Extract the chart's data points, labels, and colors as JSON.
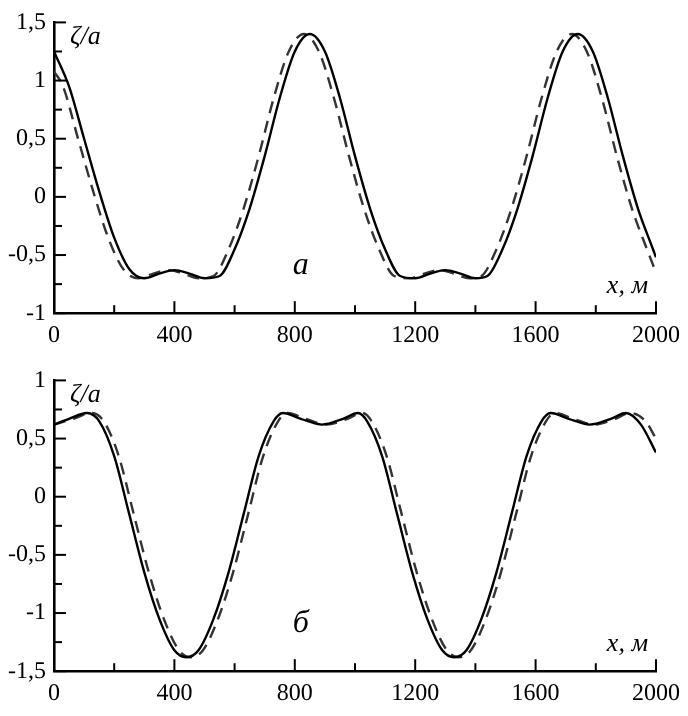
{
  "chart_data": [
    {
      "type": "line",
      "ylabel": "ζ/a",
      "xlabel": "x, м",
      "annotations": [
        "а"
      ],
      "marker": "none",
      "grid": false,
      "legend": false,
      "xlim": [
        0,
        2000
      ],
      "xticks": [
        0,
        {
          "value": 200,
          "label": null
        },
        400,
        {
          "value": 600,
          "label": null
        },
        800,
        {
          "value": 1000,
          "label": null
        },
        1200,
        {
          "value": 1400,
          "label": null
        },
        1600,
        {
          "value": 1800,
          "label": null
        },
        2000
      ],
      "ylim": [
        -1,
        1.5
      ],
      "yticks": [
        -1,
        {
          "value": -0.75,
          "label": null
        },
        {
          "value": -0.5,
          "label": "-0,5"
        },
        {
          "value": -0.25,
          "label": null
        },
        0,
        {
          "value": 0.25,
          "label": null
        },
        {
          "value": 0.5,
          "label": "0,5"
        },
        {
          "value": 0.75,
          "label": null
        },
        1,
        {
          "value": 1.25,
          "label": null
        },
        {
          "value": 1.5,
          "label": "1,5"
        }
      ],
      "series": [
        {
          "color": "#000000",
          "line_style": "solid",
          "x": [
            0,
            50,
            100,
            150,
            200,
            250,
            300,
            350,
            400,
            450,
            500,
            550,
            600,
            650,
            700,
            750,
            800,
            850,
            900,
            950,
            1000,
            1050,
            1100,
            1150,
            1200,
            1250,
            1300,
            1350,
            1400,
            1440,
            1490,
            1540,
            1590,
            1640,
            1690,
            1740,
            1790,
            1840,
            1890,
            1940,
            1990,
            2000
          ],
          "values": [
            1.25,
            0.95,
            0.5,
            0.05,
            -0.35,
            -0.62,
            -0.7,
            -0.66,
            -0.63,
            -0.66,
            -0.7,
            -0.68,
            -0.45,
            -0.1,
            0.35,
            0.85,
            1.25,
            1.4,
            1.25,
            0.85,
            0.35,
            -0.1,
            -0.45,
            -0.68,
            -0.7,
            -0.66,
            -0.63,
            -0.66,
            -0.7,
            -0.68,
            -0.45,
            -0.1,
            0.35,
            0.85,
            1.25,
            1.4,
            1.25,
            0.85,
            0.35,
            -0.1,
            -0.45,
            -0.52
          ]
        },
        {
          "color": "#333333",
          "line_style": "dashed",
          "x": [
            0,
            30,
            80,
            130,
            180,
            230,
            280,
            330,
            380,
            430,
            480,
            530,
            580,
            630,
            680,
            730,
            780,
            830,
            880,
            930,
            980,
            1030,
            1080,
            1130,
            1180,
            1230,
            1280,
            1330,
            1380,
            1420,
            1470,
            1520,
            1570,
            1620,
            1670,
            1720,
            1770,
            1820,
            1870,
            1920,
            1970,
            2000
          ],
          "values": [
            1.08,
            0.95,
            0.5,
            0.05,
            -0.35,
            -0.62,
            -0.7,
            -0.66,
            -0.63,
            -0.66,
            -0.7,
            -0.68,
            -0.45,
            -0.1,
            0.35,
            0.85,
            1.25,
            1.4,
            1.25,
            0.85,
            0.35,
            -0.1,
            -0.45,
            -0.68,
            -0.7,
            -0.66,
            -0.63,
            -0.66,
            -0.7,
            -0.68,
            -0.45,
            -0.1,
            0.35,
            0.85,
            1.25,
            1.4,
            1.25,
            0.85,
            0.35,
            -0.1,
            -0.45,
            -0.65
          ]
        }
      ]
    },
    {
      "type": "line",
      "ylabel": "ζ/a",
      "xlabel": "x, м",
      "annotations": [
        "б"
      ],
      "marker": "none",
      "grid": false,
      "legend": false,
      "xlim": [
        0,
        2000
      ],
      "xticks": [
        0,
        {
          "value": 200,
          "label": null
        },
        400,
        {
          "value": 600,
          "label": null
        },
        800,
        {
          "value": 1000,
          "label": null
        },
        1200,
        {
          "value": 1400,
          "label": null
        },
        1600,
        {
          "value": 1800,
          "label": null
        },
        2000
      ],
      "ylim": [
        -1.5,
        1
      ],
      "yticks": [
        {
          "value": -1.5,
          "label": "-1,5"
        },
        {
          "value": -1.25,
          "label": null
        },
        -1,
        {
          "value": -0.75,
          "label": null
        },
        {
          "value": -0.5,
          "label": "-0,5"
        },
        {
          "value": -0.25,
          "label": null
        },
        0,
        {
          "value": 0.25,
          "label": null
        },
        {
          "value": 0.5,
          "label": "0,5"
        },
        {
          "value": 0.75,
          "label": null
        },
        1
      ],
      "series": [
        {
          "color": "#000000",
          "line_style": "solid",
          "x": [
            0,
            50,
            110,
            150,
            200,
            250,
            300,
            350,
            400,
            440,
            480,
            530,
            580,
            630,
            680,
            730,
            760,
            820,
            890,
            960,
            1010,
            1040,
            1090,
            1140,
            1190,
            1240,
            1290,
            1330,
            1370,
            1420,
            1470,
            1520,
            1570,
            1620,
            1650,
            1710,
            1780,
            1850,
            1900,
            1950,
            2000
          ],
          "values": [
            0.62,
            0.67,
            0.72,
            0.65,
            0.35,
            -0.15,
            -0.65,
            -1.05,
            -1.32,
            -1.38,
            -1.32,
            -1.05,
            -0.65,
            -0.15,
            0.35,
            0.65,
            0.72,
            0.67,
            0.62,
            0.67,
            0.72,
            0.65,
            0.35,
            -0.15,
            -0.65,
            -1.05,
            -1.32,
            -1.38,
            -1.32,
            -1.05,
            -0.65,
            -0.15,
            0.35,
            0.65,
            0.72,
            0.67,
            0.62,
            0.67,
            0.72,
            0.62,
            0.38
          ]
        },
        {
          "color": "#333333",
          "line_style": "dashed",
          "x": [
            0,
            65,
            125,
            165,
            215,
            265,
            315,
            365,
            415,
            455,
            495,
            545,
            595,
            645,
            695,
            745,
            775,
            835,
            905,
            975,
            1025,
            1055,
            1105,
            1155,
            1205,
            1255,
            1305,
            1345,
            1385,
            1435,
            1485,
            1535,
            1585,
            1635,
            1665,
            1725,
            1795,
            1865,
            1915,
            1965,
            2000
          ],
          "values": [
            0.62,
            0.67,
            0.72,
            0.65,
            0.35,
            -0.15,
            -0.65,
            -1.05,
            -1.32,
            -1.38,
            -1.32,
            -1.05,
            -0.65,
            -0.15,
            0.35,
            0.65,
            0.72,
            0.67,
            0.62,
            0.67,
            0.72,
            0.65,
            0.35,
            -0.15,
            -0.65,
            -1.05,
            -1.32,
            -1.38,
            -1.32,
            -1.05,
            -0.65,
            -0.15,
            0.35,
            0.65,
            0.72,
            0.67,
            0.62,
            0.67,
            0.72,
            0.65,
            0.5
          ]
        }
      ]
    }
  ]
}
